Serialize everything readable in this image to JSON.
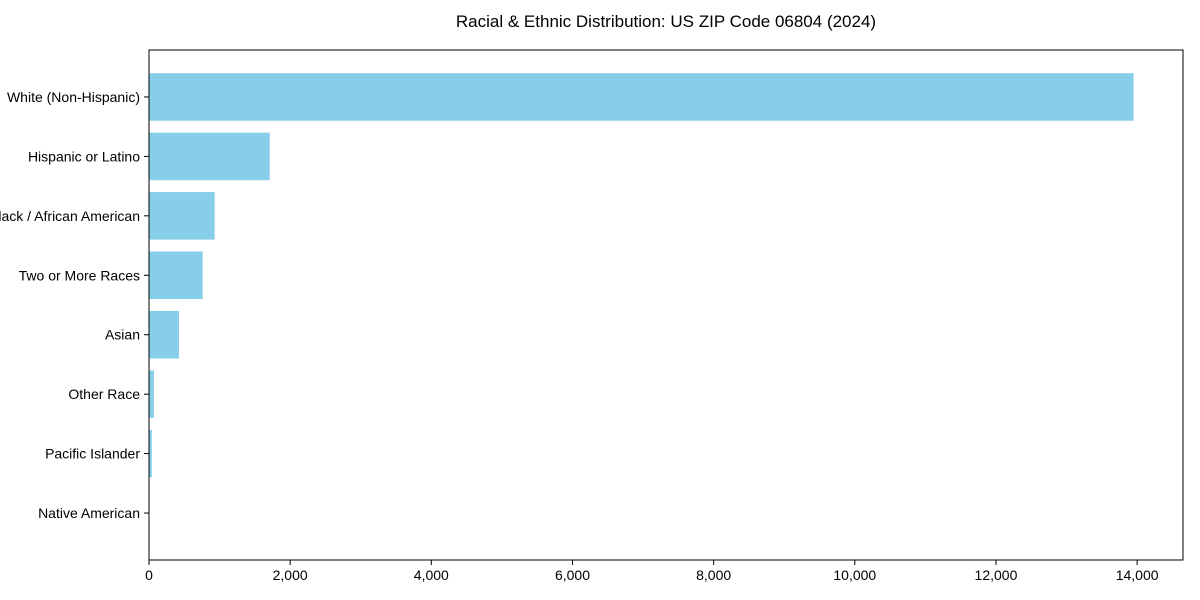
{
  "chart_data": {
    "type": "bar",
    "orientation": "horizontal",
    "title": "Racial & Ethnic Distribution: US ZIP Code 06804 (2024)",
    "categories": [
      "White (Non-Hispanic)",
      "Hispanic or Latino",
      "Black / African American",
      "Two or More Races",
      "Asian",
      "Other Race",
      "Pacific Islander",
      "Native American"
    ],
    "values": [
      13950,
      1710,
      930,
      760,
      425,
      70,
      40,
      0
    ],
    "xlabel": "",
    "ylabel": "",
    "xlim": [
      0,
      14650
    ],
    "x_ticks": [
      0,
      2000,
      4000,
      6000,
      8000,
      10000,
      12000,
      14000
    ],
    "x_tick_labels": [
      "0",
      "2,000",
      "4,000",
      "6,000",
      "8,000",
      "10,000",
      "12,000",
      "14,000"
    ],
    "bar_color": "#87CEEB",
    "axis_color": "#000000",
    "background_color": "#ffffff",
    "grid": false,
    "legend": "none",
    "bar_height_fraction": 0.8
  }
}
